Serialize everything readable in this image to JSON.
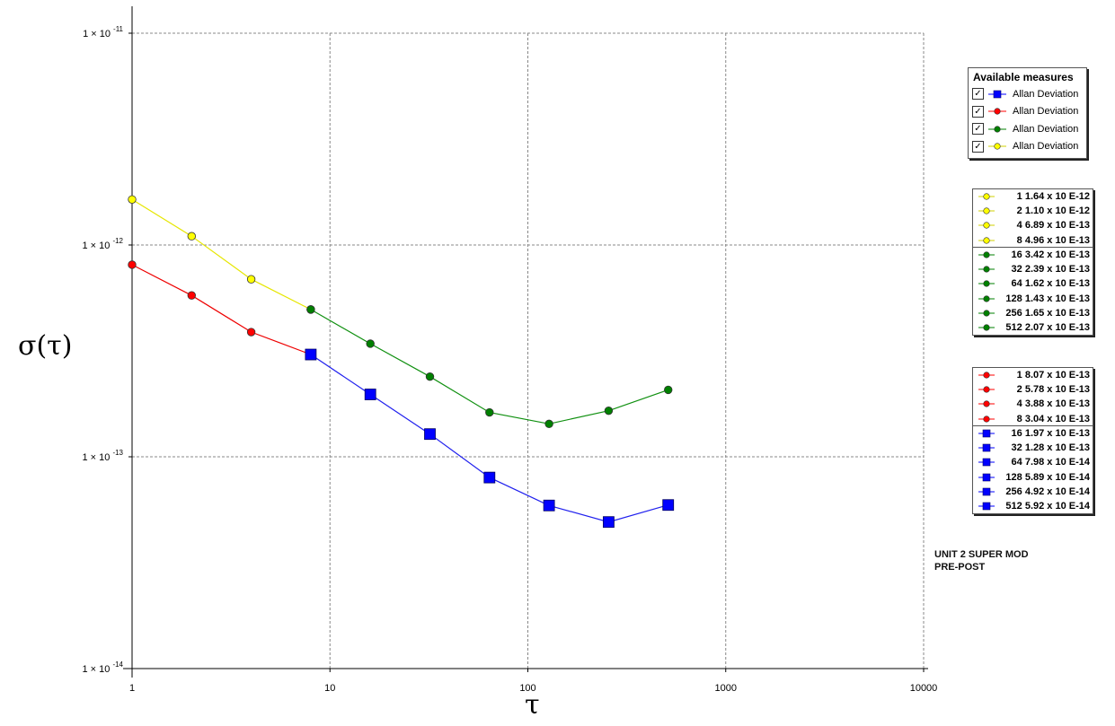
{
  "chart_data": {
    "type": "line",
    "x_scale": "log",
    "y_scale": "log",
    "xlabel": "τ",
    "ylabel": "σ(τ)",
    "xlim": [
      1,
      10000
    ],
    "ylim": [
      1e-14,
      1e-11
    ],
    "grid": true,
    "x_ticks": [
      "1",
      "10",
      "100",
      "1000",
      "10000"
    ],
    "y_ticks": [
      {
        "mant": "1 × 10",
        "exp": "-11",
        "value": 1e-11
      },
      {
        "mant": "1 × 10",
        "exp": "-12",
        "value": 1e-12
      },
      {
        "mant": "1 × 10",
        "exp": "-13",
        "value": 1e-13
      },
      {
        "mant": "1 × 10",
        "exp": "-14",
        "value": 1e-14
      }
    ],
    "series": [
      {
        "color": "#ffff00",
        "line": "#e6e600",
        "marker": "circle",
        "x": [
          1,
          2,
          4,
          8
        ],
        "y": [
          1.64e-12,
          1.1e-12,
          6.89e-13,
          4.96e-13
        ]
      },
      {
        "color": "#008000",
        "line": "#109010",
        "marker": "circle",
        "x": [
          8,
          16,
          32,
          64,
          128,
          256,
          512
        ],
        "y": [
          4.96e-13,
          3.42e-13,
          2.39e-13,
          1.62e-13,
          1.43e-13,
          1.65e-13,
          2.07e-13
        ]
      },
      {
        "color": "#ff0000",
        "line": "#ee0000",
        "marker": "circle",
        "x": [
          1,
          2,
          4,
          8
        ],
        "y": [
          8.07e-13,
          5.78e-13,
          3.88e-13,
          3.04e-13
        ]
      },
      {
        "color": "#0000ff",
        "line": "#2020ee",
        "marker": "square",
        "x": [
          8,
          16,
          32,
          64,
          128,
          256,
          512
        ],
        "y": [
          3.04e-13,
          1.97e-13,
          1.28e-13,
          7.98e-14,
          5.89e-14,
          4.92e-14,
          5.92e-14
        ]
      }
    ]
  },
  "measures_legend": {
    "title": "Available measures",
    "items": [
      {
        "checked": true,
        "label": "Allan Deviation",
        "color": "#0000ff",
        "marker": "square"
      },
      {
        "checked": true,
        "label": "Allan Deviation",
        "color": "#ff0000",
        "marker": "circle"
      },
      {
        "checked": true,
        "label": "Allan Deviation",
        "color": "#008000",
        "marker": "circle"
      },
      {
        "checked": true,
        "label": "Allan Deviation",
        "color": "#ffff00",
        "marker": "circle"
      }
    ]
  },
  "value_tables": [
    {
      "color": "#ffff00",
      "marker": "circle",
      "rows": [
        "1 1.64 x 10 E-12",
        "2 1.10 x 10 E-12",
        "4 6.89 x 10 E-13",
        "8 4.96 x 10 E-13"
      ]
    },
    {
      "color": "#008000",
      "marker": "circle",
      "rows": [
        "16 3.42 x 10 E-13",
        "32 2.39 x 10 E-13",
        "64 1.62 x 10 E-13",
        "128 1.43 x 10 E-13",
        "256 1.65 x 10 E-13",
        "512 2.07 x 10 E-13"
      ]
    },
    {
      "color": "#ff0000",
      "marker": "circle",
      "rows": [
        "1 8.07 x 10 E-13",
        "2 5.78 x 10 E-13",
        "4 3.88 x 10 E-13",
        "8 3.04 x 10 E-13"
      ]
    },
    {
      "color": "#0000ff",
      "marker": "square",
      "rows": [
        "16 1.97 x 10 E-13",
        "32 1.28 x 10 E-13",
        "64 7.98 x 10 E-14",
        "128 5.89 x 10 E-14",
        "256 4.92 x 10 E-14",
        "512 5.92 x 10 E-14"
      ]
    }
  ],
  "note": {
    "line1": "UNIT 2 SUPER MOD",
    "line2": "PRE-POST"
  }
}
